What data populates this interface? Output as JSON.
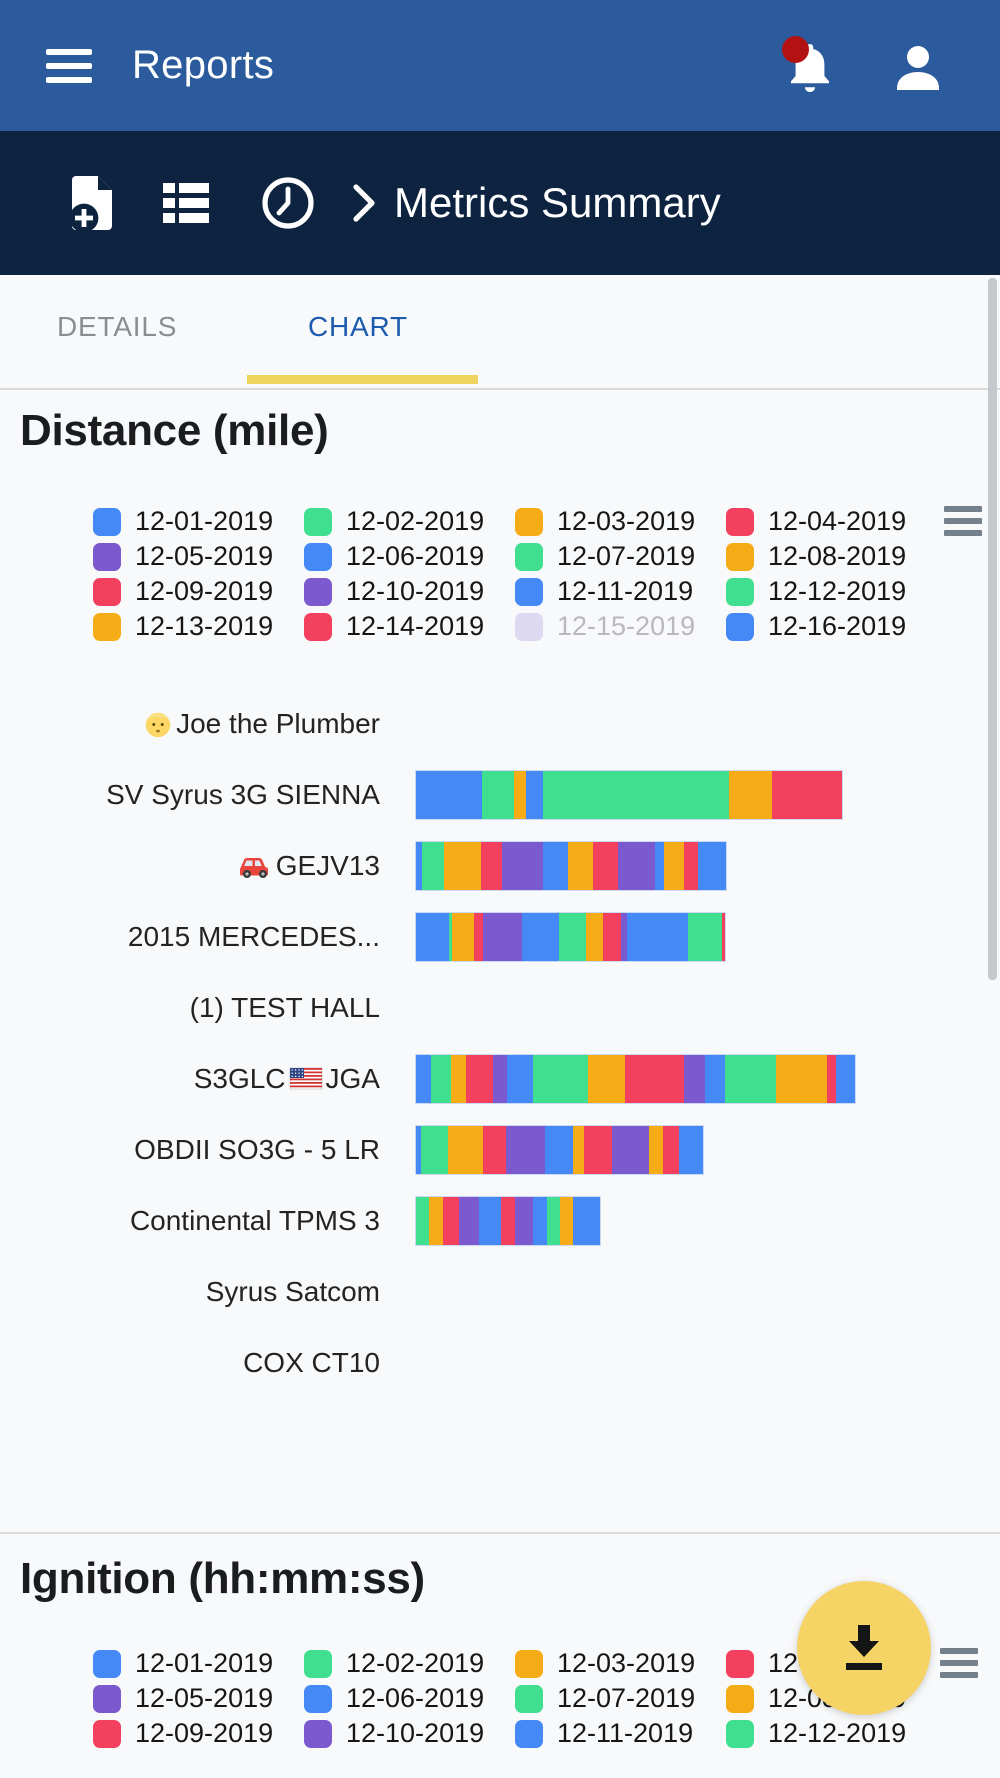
{
  "app_bar": {
    "title": "Reports",
    "notification_badge_visible": true
  },
  "toolbar": {
    "breadcrumb": "Metrics Summary",
    "icons": [
      "new-report-icon",
      "list-icon",
      "history-icon"
    ]
  },
  "tabs": {
    "items": [
      {
        "label": "DETAILS",
        "active": false
      },
      {
        "label": "CHART",
        "active": true
      }
    ]
  },
  "palette": {
    "blue": "#4489f6",
    "green": "#3fdf8f",
    "orange": "#f5ac16",
    "red": "#f4405f",
    "purple": "#7b59ce",
    "disabled_swatch": "#dcd9f0",
    "accent_tab": "#1d5bae",
    "tab_underline": "#eed35f",
    "app_bar": "#2b5b9d",
    "toolbar": "#0d2340",
    "fab": "#f6d365",
    "badge": "#b21312"
  },
  "chart_data": [
    {
      "type": "bar",
      "orientation": "horizontal",
      "stacked": true,
      "title": "Distance (mile)",
      "xlabel": "",
      "ylabel": "",
      "axis_note": "no axis ticks visible; segment values are proportional on-screen widths (relative units)",
      "legend_position": "top",
      "grid": false,
      "legend": [
        {
          "label": "12-01-2019",
          "color": "blue",
          "enabled": true
        },
        {
          "label": "12-02-2019",
          "color": "green",
          "enabled": true
        },
        {
          "label": "12-03-2019",
          "color": "orange",
          "enabled": true
        },
        {
          "label": "12-04-2019",
          "color": "red",
          "enabled": true
        },
        {
          "label": "12-05-2019",
          "color": "purple",
          "enabled": true
        },
        {
          "label": "12-06-2019",
          "color": "blue",
          "enabled": true
        },
        {
          "label": "12-07-2019",
          "color": "green",
          "enabled": true
        },
        {
          "label": "12-08-2019",
          "color": "orange",
          "enabled": true
        },
        {
          "label": "12-09-2019",
          "color": "red",
          "enabled": true
        },
        {
          "label": "12-10-2019",
          "color": "purple",
          "enabled": true
        },
        {
          "label": "12-11-2019",
          "color": "blue",
          "enabled": true
        },
        {
          "label": "12-12-2019",
          "color": "green",
          "enabled": true
        },
        {
          "label": "12-13-2019",
          "color": "orange",
          "enabled": true
        },
        {
          "label": "12-14-2019",
          "color": "red",
          "enabled": true
        },
        {
          "label": "12-15-2019",
          "color": "purple",
          "enabled": false
        },
        {
          "label": "12-16-2019",
          "color": "blue",
          "enabled": true
        }
      ],
      "rows": [
        {
          "label": "Joe the Plumber",
          "parts": [
            {
              "icon": "man-emoji",
              "emoji": "👱"
            },
            {
              "text": "Joe the Plumber"
            }
          ],
          "segments": []
        },
        {
          "label": "SV Syrus 3G SIENNA",
          "parts": [
            {
              "text": "SV Syrus 3G SIENNA"
            }
          ],
          "segments": [
            {
              "date": "12-01-2019",
              "value": 66
            },
            {
              "date": "12-02-2019",
              "value": 32
            },
            {
              "date": "12-03-2019",
              "value": 12
            },
            {
              "date": "12-06-2019",
              "value": 17
            },
            {
              "date": "12-07-2019",
              "value": 186
            },
            {
              "date": "12-08-2019",
              "value": 43
            },
            {
              "date": "12-09-2019",
              "value": 70
            }
          ]
        },
        {
          "label": "GEJV13",
          "parts": [
            {
              "icon": "car-emoji",
              "emoji": "🚗"
            },
            {
              "text": "GEJV13"
            }
          ],
          "segments": [
            {
              "date": "12-01-2019",
              "value": 6
            },
            {
              "date": "12-02-2019",
              "value": 22
            },
            {
              "date": "12-03-2019",
              "value": 37
            },
            {
              "date": "12-04-2019",
              "value": 21
            },
            {
              "date": "12-05-2019",
              "value": 41
            },
            {
              "date": "12-06-2019",
              "value": 25
            },
            {
              "date": "12-08-2019",
              "value": 25
            },
            {
              "date": "12-09-2019",
              "value": 25
            },
            {
              "date": "12-10-2019",
              "value": 37
            },
            {
              "date": "12-11-2019",
              "value": 9
            },
            {
              "date": "12-13-2019",
              "value": 20
            },
            {
              "date": "12-14-2019",
              "value": 14
            },
            {
              "date": "12-16-2019",
              "value": 28
            }
          ]
        },
        {
          "label": "2015 MERCEDES...",
          "parts": [
            {
              "text": "2015 MERCEDES..."
            }
          ],
          "segments": [
            {
              "date": "12-01-2019",
              "value": 33
            },
            {
              "date": "12-02-2019",
              "value": 3
            },
            {
              "date": "12-03-2019",
              "value": 22
            },
            {
              "date": "12-04-2019",
              "value": 9
            },
            {
              "date": "12-05-2019",
              "value": 39
            },
            {
              "date": "12-06-2019",
              "value": 37
            },
            {
              "date": "12-07-2019",
              "value": 27
            },
            {
              "date": "12-08-2019",
              "value": 17
            },
            {
              "date": "12-09-2019",
              "value": 18
            },
            {
              "date": "12-10-2019",
              "value": 6
            },
            {
              "date": "12-11-2019",
              "value": 61
            },
            {
              "date": "12-12-2019",
              "value": 34
            },
            {
              "date": "12-14-2019",
              "value": 3
            }
          ]
        },
        {
          "label": "(1) TEST HALL",
          "parts": [
            {
              "text": "(1) TEST HALL"
            }
          ],
          "segments": []
        },
        {
          "label": "S3GLC JGA",
          "parts": [
            {
              "text": "S3GLC "
            },
            {
              "icon": "us-flag-emoji",
              "emoji": "🇺🇸"
            },
            {
              "text": " JGA"
            }
          ],
          "segments": [
            {
              "date": "12-01-2019",
              "value": 15
            },
            {
              "date": "12-02-2019",
              "value": 20
            },
            {
              "date": "12-03-2019",
              "value": 15
            },
            {
              "date": "12-04-2019",
              "value": 27
            },
            {
              "date": "12-05-2019",
              "value": 14
            },
            {
              "date": "12-06-2019",
              "value": 26
            },
            {
              "date": "12-07-2019",
              "value": 55
            },
            {
              "date": "12-08-2019",
              "value": 37
            },
            {
              "date": "12-09-2019",
              "value": 59
            },
            {
              "date": "12-10-2019",
              "value": 21
            },
            {
              "date": "12-11-2019",
              "value": 20
            },
            {
              "date": "12-12-2019",
              "value": 51
            },
            {
              "date": "12-13-2019",
              "value": 51
            },
            {
              "date": "12-14-2019",
              "value": 9
            },
            {
              "date": "12-16-2019",
              "value": 19
            }
          ]
        },
        {
          "label": "OBDII SO3G - 5 LR",
          "parts": [
            {
              "text": "OBDII SO3G - 5 LR"
            }
          ],
          "segments": [
            {
              "date": "12-01-2019",
              "value": 5
            },
            {
              "date": "12-02-2019",
              "value": 27
            },
            {
              "date": "12-03-2019",
              "value": 35
            },
            {
              "date": "12-04-2019",
              "value": 23
            },
            {
              "date": "12-05-2019",
              "value": 39
            },
            {
              "date": "12-06-2019",
              "value": 28
            },
            {
              "date": "12-08-2019",
              "value": 11
            },
            {
              "date": "12-09-2019",
              "value": 28
            },
            {
              "date": "12-10-2019",
              "value": 37
            },
            {
              "date": "12-13-2019",
              "value": 14
            },
            {
              "date": "12-14-2019",
              "value": 16
            },
            {
              "date": "12-16-2019",
              "value": 24
            }
          ]
        },
        {
          "label": "Continental TPMS 3",
          "parts": [
            {
              "text": "Continental TPMS 3"
            }
          ],
          "segments": [
            {
              "date": "12-02-2019",
              "value": 13
            },
            {
              "date": "12-03-2019",
              "value": 14
            },
            {
              "date": "12-04-2019",
              "value": 16
            },
            {
              "date": "12-05-2019",
              "value": 20
            },
            {
              "date": "12-06-2019",
              "value": 22
            },
            {
              "date": "12-09-2019",
              "value": 14
            },
            {
              "date": "12-10-2019",
              "value": 18
            },
            {
              "date": "12-11-2019",
              "value": 14
            },
            {
              "date": "12-12-2019",
              "value": 13
            },
            {
              "date": "12-13-2019",
              "value": 13
            },
            {
              "date": "12-16-2019",
              "value": 27
            }
          ]
        },
        {
          "label": "Syrus Satcom",
          "parts": [
            {
              "text": "Syrus Satcom"
            }
          ],
          "segments": []
        },
        {
          "label": "COX CT10",
          "parts": [
            {
              "text": "COX CT10"
            }
          ],
          "segments": []
        }
      ]
    },
    {
      "type": "bar",
      "orientation": "horizontal",
      "stacked": true,
      "title": "Ignition (hh:mm:ss)",
      "legend_position": "top",
      "note": "chart body is cut off below the visible screenshot edge; only legend visible",
      "legend": [
        {
          "label": "12-01-2019",
          "color": "blue",
          "enabled": true
        },
        {
          "label": "12-02-2019",
          "color": "green",
          "enabled": true
        },
        {
          "label": "12-03-2019",
          "color": "orange",
          "enabled": true
        },
        {
          "label": "12-04-2019",
          "color": "red",
          "enabled": true
        },
        {
          "label": "12-05-2019",
          "color": "purple",
          "enabled": true
        },
        {
          "label": "12-06-2019",
          "color": "blue",
          "enabled": true
        },
        {
          "label": "12-07-2019",
          "color": "green",
          "enabled": true
        },
        {
          "label": "12-08-2019",
          "color": "orange",
          "enabled": true
        },
        {
          "label": "12-09-2019",
          "color": "red",
          "enabled": true
        },
        {
          "label": "12-10-2019",
          "color": "purple",
          "enabled": true
        },
        {
          "label": "12-11-2019",
          "color": "blue",
          "enabled": true
        },
        {
          "label": "12-12-2019",
          "color": "green",
          "enabled": true
        }
      ]
    }
  ],
  "fab": {
    "icon": "download-icon"
  }
}
